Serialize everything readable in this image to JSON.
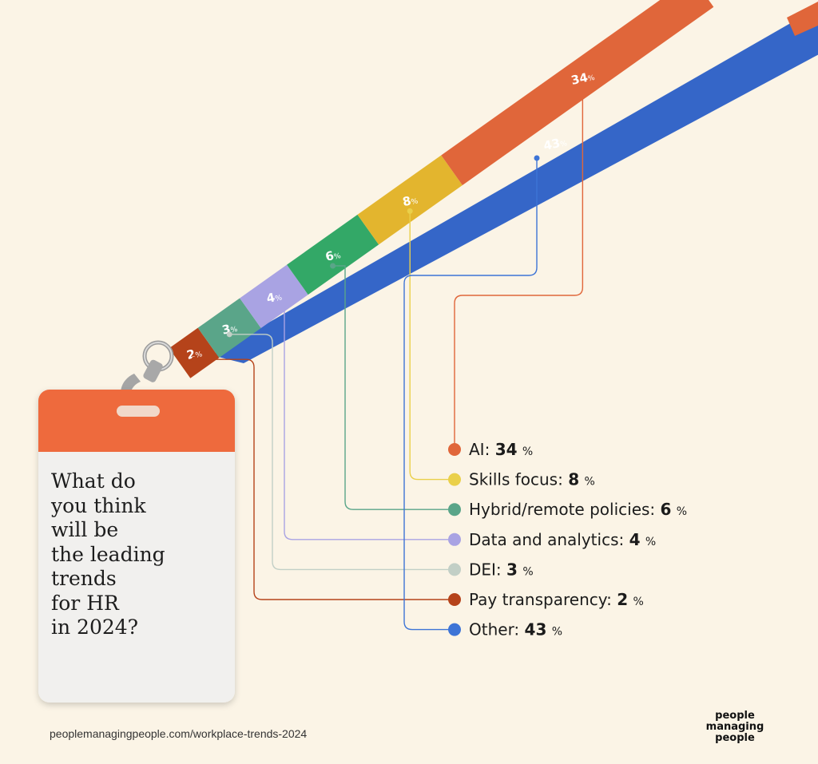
{
  "question": "What do\nyou think\nwill be\nthe leading\ntrends\nfor HR\nin 2024?",
  "source_url": "peoplemanagingpeople.com/workplace-trends-2024",
  "brand": {
    "line1": "people",
    "line2": "managing",
    "line3": "people"
  },
  "colors": {
    "background": "#fbf4e6",
    "badge_header": "#ee6a3c",
    "badge_body": "#f1f0ee",
    "ai": "#e0663a",
    "skills": "#e3b52e",
    "hybrid": "#33a867",
    "data": "#a9a3e3",
    "dei": "#5aa589",
    "pay": "#b5431a",
    "other": "#3d74d6"
  },
  "chart_data": {
    "type": "pie",
    "title": "What do you think will be the leading trends for HR in 2024?",
    "unit": "%",
    "categories": [
      "AI",
      "Skills focus",
      "Hybrid/remote policies",
      "Data and analytics",
      "DEI",
      "Pay transparency",
      "Other"
    ],
    "values": [
      34,
      8,
      6,
      4,
      3,
      2,
      43
    ],
    "legend_colors": [
      "#e0663a",
      "#ead04a",
      "#5aa589",
      "#a9a3e3",
      "#c2cfc6",
      "#b5431a",
      "#3d74d6"
    ],
    "strap_colors": [
      "#e0663a",
      "#e3b52e",
      "#33a867",
      "#a9a3e3",
      "#5aa589",
      "#b5431a",
      "#3d74d6"
    ],
    "legend_placement": "right"
  }
}
